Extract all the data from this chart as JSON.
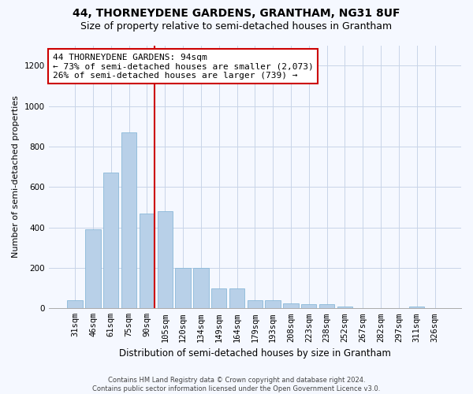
{
  "title": "44, THORNEYDENE GARDENS, GRANTHAM, NG31 8UF",
  "subtitle": "Size of property relative to semi-detached houses in Grantham",
  "xlabel": "Distribution of semi-detached houses by size in Grantham",
  "ylabel": "Number of semi-detached properties",
  "categories": [
    "31sqm",
    "46sqm",
    "61sqm",
    "75sqm",
    "90sqm",
    "105sqm",
    "120sqm",
    "134sqm",
    "149sqm",
    "164sqm",
    "179sqm",
    "193sqm",
    "208sqm",
    "223sqm",
    "238sqm",
    "252sqm",
    "267sqm",
    "282sqm",
    "297sqm",
    "311sqm",
    "326sqm"
  ],
  "values": [
    40,
    390,
    670,
    870,
    470,
    480,
    200,
    200,
    100,
    100,
    40,
    40,
    25,
    20,
    20,
    8,
    0,
    0,
    0,
    8,
    0
  ],
  "bar_color": "#b8d0e8",
  "bar_edge_color": "#8ab8d8",
  "property_bin_index": 4,
  "annotation_text": "44 THORNEYDENE GARDENS: 94sqm\n← 73% of semi-detached houses are smaller (2,073)\n26% of semi-detached houses are larger (739) →",
  "vline_color": "#cc0000",
  "annotation_box_color": "#ffffff",
  "annotation_box_edge_color": "#cc0000",
  "ylim": [
    0,
    1300
  ],
  "yticks": [
    0,
    200,
    400,
    600,
    800,
    1000,
    1200
  ],
  "footer_line1": "Contains HM Land Registry data © Crown copyright and database right 2024.",
  "footer_line2": "Contains public sector information licensed under the Open Government Licence v3.0.",
  "background_color": "#f5f8ff",
  "grid_color": "#c8d4e8",
  "title_fontsize": 10,
  "subtitle_fontsize": 9,
  "annotation_fontsize": 8,
  "axis_fontsize": 7.5,
  "ylabel_fontsize": 8,
  "xlabel_fontsize": 8.5,
  "footer_fontsize": 6
}
